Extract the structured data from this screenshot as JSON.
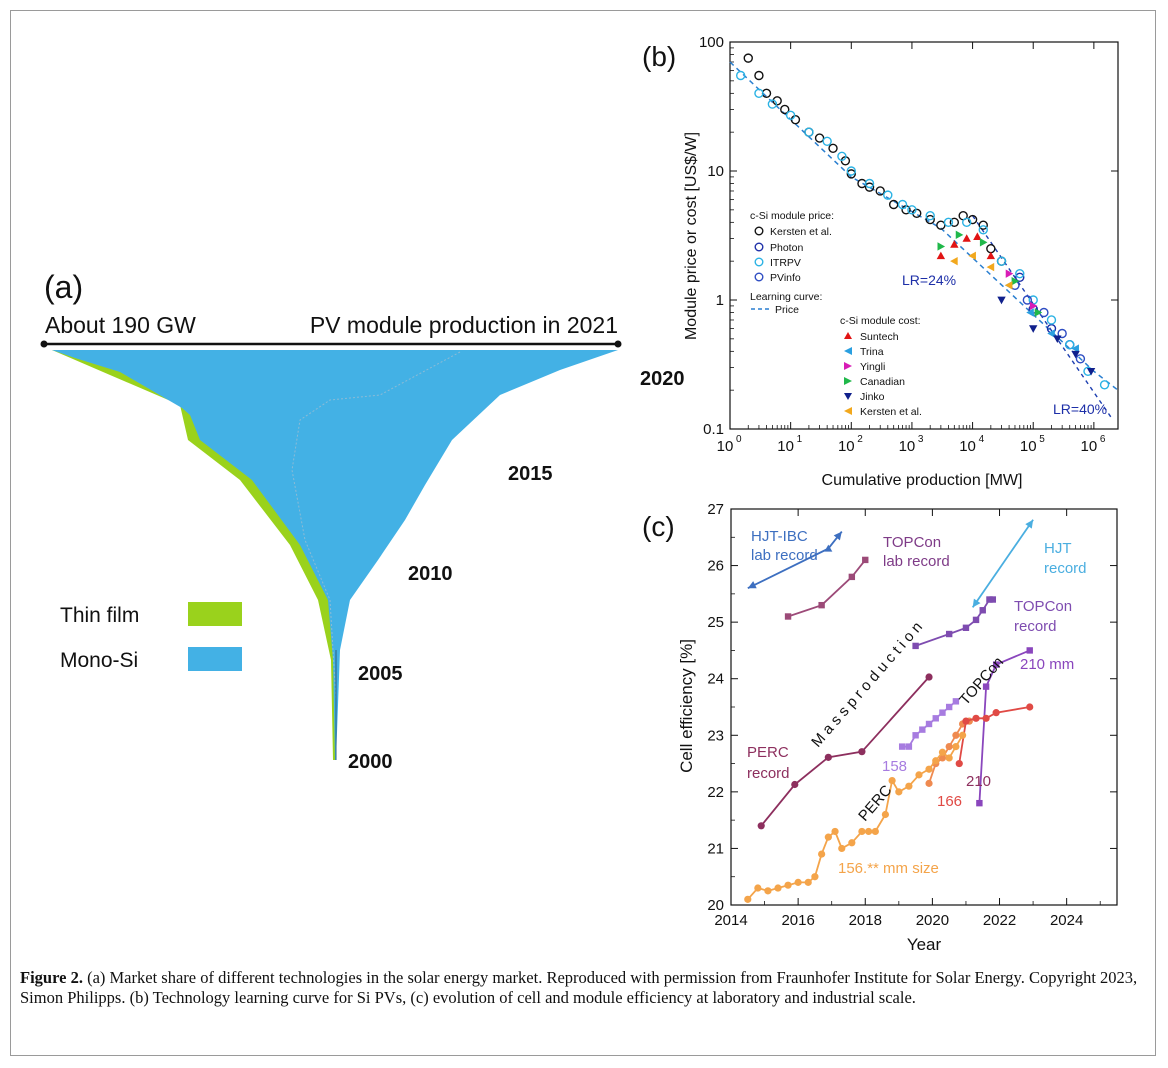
{
  "panel_a": {
    "letter": "(a)",
    "header_left": "About 190   GW",
    "header_right": "PV module production in 2021",
    "year_labels": [
      "2020",
      "2015",
      "2010",
      "2005",
      "2000"
    ],
    "legend": [
      {
        "label": "Thin film",
        "color": "#9ad21c"
      },
      {
        "label": "Mono-Si",
        "color": "#43b1e5"
      }
    ]
  },
  "panel_b": {
    "letter": "(b)",
    "xlabel": "Cumulative production [MW]",
    "ylabel": "Module price or cost [US$/W]",
    "x_ticks": [
      {
        "base": "10",
        "exp": "0"
      },
      {
        "base": "10",
        "exp": "1"
      },
      {
        "base": "10",
        "exp": "2"
      },
      {
        "base": "10",
        "exp": "3"
      },
      {
        "base": "10",
        "exp": "4"
      },
      {
        "base": "10",
        "exp": "5"
      },
      {
        "base": "10",
        "exp": "6"
      }
    ],
    "y_ticks": [
      "100",
      "10",
      "1",
      "0.1"
    ],
    "legend_price_title": "c-Si module price:",
    "legend_price": [
      "Kersten et al.",
      "Photon",
      "ITRPV",
      "PVinfo"
    ],
    "legend_curve_title": "Learning curve:",
    "legend_curve": "Price",
    "legend_cost_title": "c-Si module cost:",
    "legend_cost": [
      "Suntech",
      "Trina",
      "Yingli",
      "Canadian",
      "Jinko",
      "Kersten et al."
    ],
    "annot_lr24": "LR=24%",
    "annot_lr40": "LR=40%"
  },
  "panel_c": {
    "letter": "(c)",
    "xlabel": "Year",
    "ylabel": "Cell efficiency  [%]",
    "x_ticks": [
      "2014",
      "2016",
      "2018",
      "2020",
      "2022",
      "2024"
    ],
    "y_ticks": [
      "20",
      "21",
      "22",
      "23",
      "24",
      "25",
      "26",
      "27"
    ],
    "labels": {
      "hjt_ibc": [
        "HJT-IBC",
        "lab record"
      ],
      "topcon_lab": [
        "TOPCon",
        "lab record"
      ],
      "hjt_record": [
        "HJT",
        "record"
      ],
      "topcon_record": [
        "TOPCon",
        "record"
      ],
      "mass_production": "M a s s   p r o d u c t i o n",
      "topcon_mass": "TOPCon",
      "mm210_topcon": "210 mm",
      "perc_record": [
        "PERC",
        "record"
      ],
      "n158": "158",
      "n210": "210",
      "n166": "166",
      "perc_mass": "PERC",
      "size156": "156.** mm size"
    }
  },
  "chart_data": [
    {
      "type": "scatter",
      "title": "",
      "xlabel": "Cumulative production [MW]",
      "ylabel": "Module price or cost [US$/W]",
      "xscale": "log",
      "yscale": "log",
      "xlim": [
        1,
        2500000
      ],
      "ylim": [
        0.1,
        100
      ],
      "learning_curve_price": [
        [
          1,
          70
        ],
        [
          100,
          9
        ],
        [
          3000,
          3.6
        ],
        [
          1000000,
          0.28
        ],
        [
          2500000,
          0.2
        ]
      ],
      "learning_curve_lr40": [
        [
          10000,
          4.5
        ],
        [
          2000000,
          0.12
        ]
      ],
      "series": [
        {
          "name": "Kersten et al.",
          "marker": "circle-open",
          "color": "#111111",
          "points": [
            [
              2,
              75
            ],
            [
              3,
              55
            ],
            [
              4,
              40
            ],
            [
              6,
              35
            ],
            [
              8,
              30
            ],
            [
              12,
              25
            ],
            [
              20,
              20
            ],
            [
              30,
              18
            ],
            [
              50,
              15
            ],
            [
              80,
              12
            ],
            [
              100,
              9.5
            ],
            [
              150,
              8
            ],
            [
              200,
              7.5
            ],
            [
              300,
              7
            ],
            [
              500,
              5.5
            ],
            [
              800,
              5
            ],
            [
              1200,
              4.7
            ],
            [
              2000,
              4.2
            ],
            [
              3000,
              3.8
            ],
            [
              5000,
              4
            ],
            [
              7000,
              4.5
            ],
            [
              10000,
              4.2
            ],
            [
              15000,
              3.8
            ],
            [
              20000,
              2.5
            ],
            [
              30000,
              2
            ]
          ]
        },
        {
          "name": "Photon",
          "marker": "circle-open",
          "color": "#1d2fa8",
          "points": [
            [
              60000,
              1.5
            ],
            [
              100000,
              0.85
            ],
            [
              200000,
              0.6
            ],
            [
              400000,
              0.45
            ]
          ]
        },
        {
          "name": "ITRPV",
          "marker": "circle-open",
          "color": "#2ab2e4",
          "points": [
            [
              1.5,
              55
            ],
            [
              3,
              40
            ],
            [
              5,
              33
            ],
            [
              10,
              27
            ],
            [
              20,
              20
            ],
            [
              40,
              17
            ],
            [
              70,
              13
            ],
            [
              100,
              10
            ],
            [
              200,
              8
            ],
            [
              400,
              6.5
            ],
            [
              700,
              5.5
            ],
            [
              1000,
              5
            ],
            [
              2000,
              4.5
            ],
            [
              4000,
              4
            ],
            [
              8000,
              4
            ],
            [
              15000,
              3.5
            ],
            [
              30000,
              2
            ],
            [
              60000,
              1.6
            ],
            [
              100000,
              1
            ],
            [
              200000,
              0.7
            ],
            [
              400000,
              0.45
            ],
            [
              800000,
              0.28
            ],
            [
              1500000,
              0.22
            ]
          ]
        },
        {
          "name": "PVinfo",
          "marker": "circle-open",
          "color": "#2d4cc2",
          "points": [
            [
              50000,
              1.3
            ],
            [
              80000,
              1
            ],
            [
              150000,
              0.8
            ],
            [
              300000,
              0.55
            ],
            [
              600000,
              0.35
            ]
          ]
        },
        {
          "name": "Suntech",
          "marker": "triangle-up",
          "color": "#e11414",
          "points": [
            [
              3000,
              2.2
            ],
            [
              5000,
              2.7
            ],
            [
              8000,
              3
            ],
            [
              12000,
              3.1
            ],
            [
              20000,
              2.2
            ]
          ]
        },
        {
          "name": "Trina",
          "marker": "triangle-left",
          "color": "#2a9fe0",
          "points": [
            [
              40000,
              1.3
            ],
            [
              90000,
              0.8
            ],
            [
              200000,
              0.55
            ],
            [
              500000,
              0.42
            ]
          ]
        },
        {
          "name": "Yingli",
          "marker": "triangle-right",
          "color": "#d81cb6",
          "points": [
            [
              40000,
              1.6
            ],
            [
              100000,
              0.9
            ]
          ]
        },
        {
          "name": "Canadian",
          "marker": "triangle-right",
          "color": "#20b84a",
          "points": [
            [
              3000,
              2.6
            ],
            [
              6000,
              3.2
            ],
            [
              15000,
              2.8
            ],
            [
              50000,
              1.4
            ],
            [
              120000,
              0.8
            ]
          ]
        },
        {
          "name": "Jinko",
          "marker": "triangle-down",
          "color": "#10208c",
          "points": [
            [
              30000,
              1
            ],
            [
              100000,
              0.6
            ],
            [
              250000,
              0.5
            ],
            [
              500000,
              0.38
            ],
            [
              900000,
              0.28
            ]
          ]
        },
        {
          "name": "Kersten et al.",
          "marker": "triangle-left",
          "color": "#f2a81d",
          "points": [
            [
              5000,
              2
            ],
            [
              10000,
              2.2
            ],
            [
              20000,
              1.8
            ],
            [
              40000,
              1.3
            ]
          ]
        }
      ]
    },
    {
      "type": "line",
      "title": "",
      "xlabel": "Year",
      "ylabel": "Cell efficiency  [%]",
      "xlim": [
        2014,
        2025.5
      ],
      "ylim": [
        20,
        27
      ],
      "series": [
        {
          "name": "HJT-IBC lab record",
          "color": "#3d6fc0",
          "marker": "triangle",
          "points": [
            [
              2014.5,
              25.6
            ],
            [
              2016.9,
              26.3
            ],
            [
              2017.3,
              26.6
            ]
          ]
        },
        {
          "name": "TOPCon lab record",
          "color": "#9c4a78",
          "marker": "square",
          "points": [
            [
              2015.7,
              25.1
            ],
            [
              2016.7,
              25.3
            ],
            [
              2017.6,
              25.8
            ],
            [
              2018.0,
              26.1
            ]
          ]
        },
        {
          "name": "HJT record",
          "color": "#4aaee0",
          "marker": "triangle",
          "points": [
            [
              2021.2,
              25.26
            ],
            [
              2023.0,
              26.81
            ]
          ]
        },
        {
          "name": "TOPCon record",
          "color": "#7e4cb0",
          "marker": "square",
          "points": [
            [
              2019.5,
              24.58
            ],
            [
              2020.5,
              24.79
            ],
            [
              2021.0,
              24.9
            ],
            [
              2021.3,
              25.04
            ],
            [
              2021.5,
              25.21
            ],
            [
              2021.7,
              25.4
            ],
            [
              2021.8,
              25.4
            ]
          ]
        },
        {
          "name": "PERC record",
          "color": "#8d2f5e",
          "marker": "circle",
          "points": [
            [
              2014.9,
              21.4
            ],
            [
              2015.9,
              22.13
            ],
            [
              2016.9,
              22.61
            ],
            [
              2017.9,
              22.71
            ],
            [
              2019.9,
              24.03
            ]
          ]
        },
        {
          "name": "TOPCon 158",
          "color": "#a77ce0",
          "marker": "square",
          "points": [
            [
              2019.1,
              22.8
            ],
            [
              2019.3,
              22.8
            ],
            [
              2019.5,
              23.0
            ],
            [
              2019.7,
              23.1
            ],
            [
              2019.9,
              23.2
            ],
            [
              2020.1,
              23.3
            ],
            [
              2020.3,
              23.4
            ],
            [
              2020.5,
              23.5
            ],
            [
              2020.7,
              23.6
            ]
          ]
        },
        {
          "name": "TOPCon 210 mm",
          "color": "#8a46bd",
          "marker": "square",
          "points": [
            [
              2021.4,
              21.8
            ],
            [
              2021.6,
              23.86
            ],
            [
              2021.9,
              24.25
            ],
            [
              2022.9,
              24.5
            ]
          ]
        },
        {
          "name": "PERC 166",
          "color": "#ef8a50",
          "marker": "circle",
          "points": [
            [
              2019.9,
              22.15
            ],
            [
              2020.1,
              22.5
            ],
            [
              2020.3,
              22.6
            ],
            [
              2020.5,
              22.8
            ],
            [
              2020.7,
              23.0
            ],
            [
              2020.9,
              23.2
            ],
            [
              2021.1,
              23.25
            ]
          ]
        },
        {
          "name": "PERC 210",
          "color": "#e04a45",
          "marker": "circle",
          "points": [
            [
              2020.8,
              22.5
            ],
            [
              2021.0,
              23.25
            ],
            [
              2021.3,
              23.3
            ],
            [
              2021.6,
              23.3
            ],
            [
              2021.9,
              23.4
            ],
            [
              2022.9,
              23.5
            ]
          ]
        },
        {
          "name": "PERC 156.** mm size",
          "color": "#f4a44a",
          "marker": "circle",
          "points": [
            [
              2014.5,
              20.1
            ],
            [
              2014.8,
              20.3
            ],
            [
              2015.1,
              20.25
            ],
            [
              2015.4,
              20.3
            ],
            [
              2015.7,
              20.35
            ],
            [
              2016.0,
              20.4
            ],
            [
              2016.3,
              20.4
            ],
            [
              2016.5,
              20.5
            ],
            [
              2016.7,
              20.9
            ],
            [
              2016.9,
              21.2
            ],
            [
              2017.1,
              21.3
            ],
            [
              2017.3,
              21.0
            ],
            [
              2017.6,
              21.1
            ],
            [
              2017.9,
              21.3
            ],
            [
              2018.1,
              21.3
            ],
            [
              2018.3,
              21.3
            ],
            [
              2018.6,
              21.6
            ],
            [
              2018.8,
              22.2
            ],
            [
              2019.0,
              22.0
            ],
            [
              2019.3,
              22.1
            ],
            [
              2019.6,
              22.3
            ],
            [
              2019.9,
              22.4
            ],
            [
              2020.1,
              22.55
            ],
            [
              2020.3,
              22.7
            ],
            [
              2020.5,
              22.6
            ],
            [
              2020.7,
              22.8
            ],
            [
              2020.9,
              23.0
            ]
          ]
        }
      ]
    }
  ],
  "caption": {
    "label": "Figure 2.",
    "text": "(a) Market share of different technologies in the solar energy market. Reproduced with permission from Fraunhofer Institute for Solar Energy. Copyright 2023, Simon Philipps. (b) Technology learning curve for Si PVs, (c) evolution of cell and module efficiency at laboratory and industrial scale."
  }
}
